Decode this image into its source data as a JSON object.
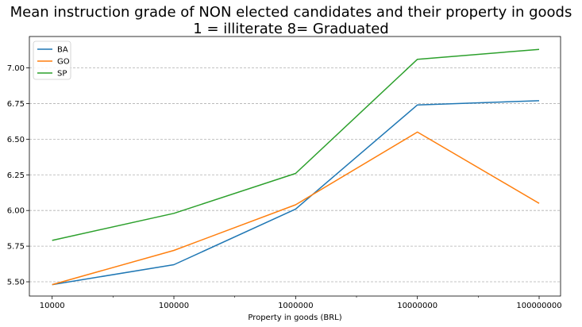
{
  "chart_data": {
    "type": "line",
    "title_lines": [
      "Mean instruction grade of NON elected candidates and their property in goods",
      "1 = illiterate 8= Graduated"
    ],
    "xlabel": "Property in goods (BRL)",
    "ylabel": "",
    "x_scale": "log",
    "x": [
      10000,
      100000,
      1000000,
      10000000,
      100000000
    ],
    "x_tick_labels": [
      "10000",
      "100000",
      "1000000",
      "10000000",
      "100000000"
    ],
    "xlim": [
      6500,
      150000000
    ],
    "ylim": [
      5.4,
      7.22
    ],
    "y_ticks": [
      5.5,
      5.75,
      6.0,
      6.25,
      6.5,
      6.75,
      7.0
    ],
    "y_tick_labels": [
      "5.50",
      "5.75",
      "6.00",
      "6.25",
      "6.50",
      "6.75",
      "7.00"
    ],
    "grid": "horizontal dashed",
    "legend_position": "top-left",
    "series": [
      {
        "name": "BA",
        "color": "#1f77b4",
        "values": [
          5.48,
          5.62,
          6.01,
          6.74,
          6.77
        ]
      },
      {
        "name": "GO",
        "color": "#ff7f0e",
        "values": [
          5.48,
          5.72,
          6.04,
          6.55,
          6.05
        ]
      },
      {
        "name": "SP",
        "color": "#2ca02c",
        "values": [
          5.79,
          5.98,
          6.26,
          7.06,
          7.13
        ]
      }
    ]
  }
}
